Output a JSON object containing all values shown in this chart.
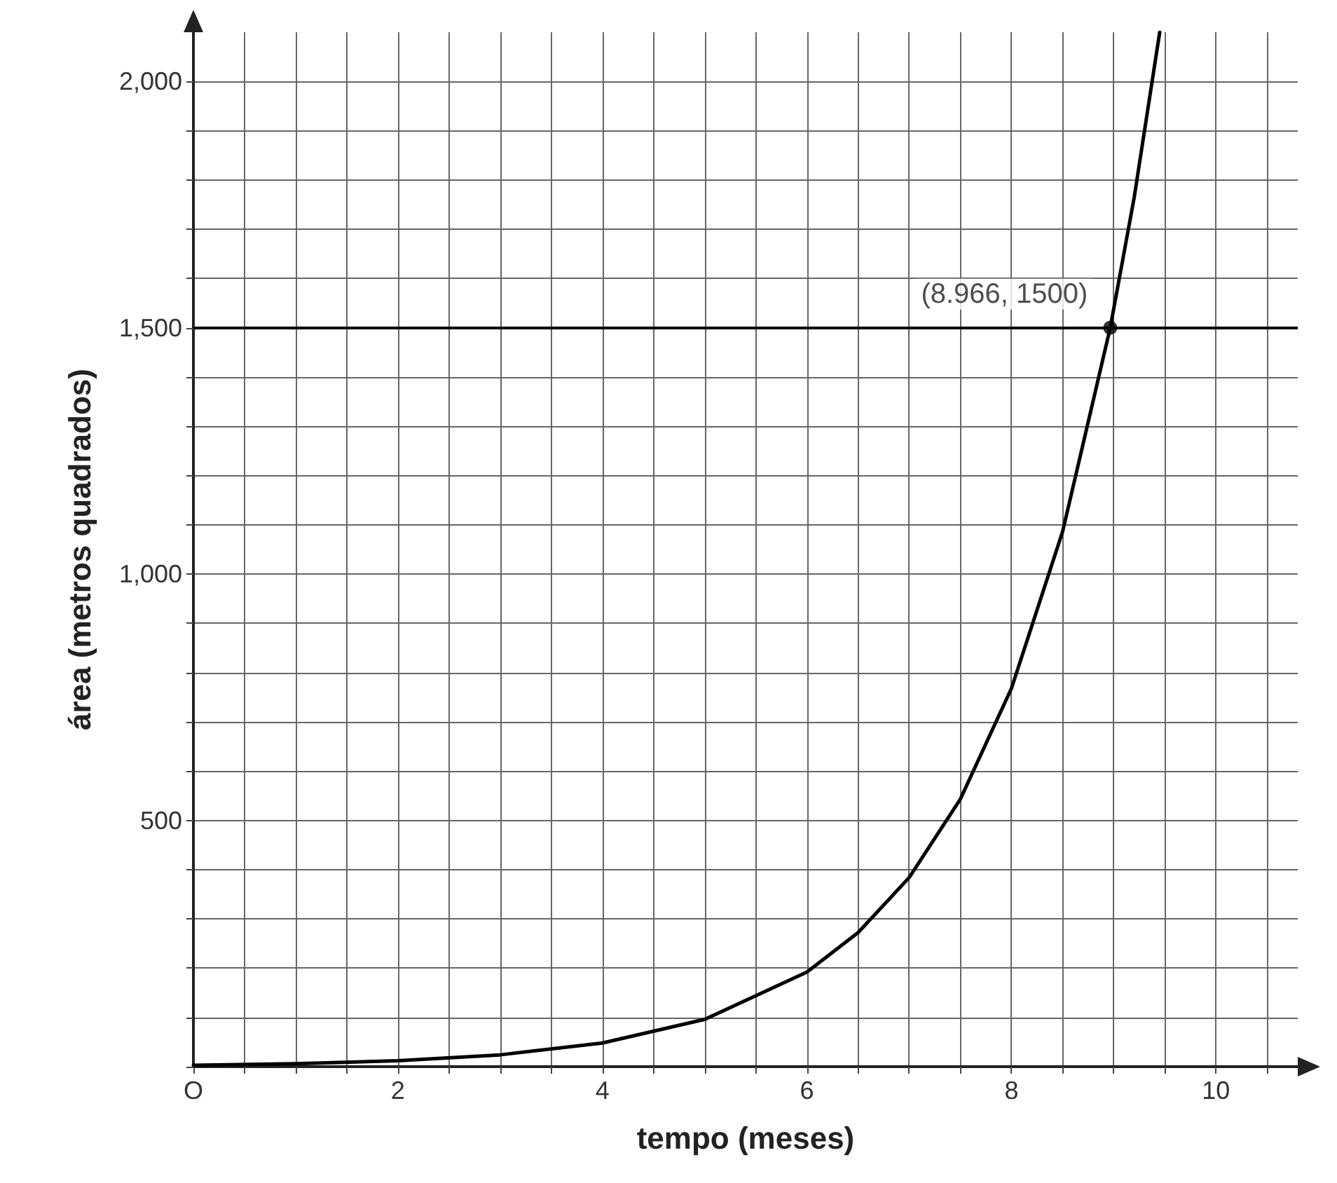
{
  "chart_data": {
    "type": "line",
    "xlabel": "tempo (meses)",
    "ylabel": "área (metros quadrados)",
    "xlim": [
      0,
      10.8
    ],
    "ylim": [
      0,
      2100
    ],
    "xticks": [
      {
        "value": 0,
        "label": "O"
      },
      {
        "value": 0.5,
        "label": null
      },
      {
        "value": 1,
        "label": null
      },
      {
        "value": 1.5,
        "label": null
      },
      2,
      {
        "value": 2.5,
        "label": null
      },
      {
        "value": 3,
        "label": null
      },
      {
        "value": 3.5,
        "label": null
      },
      4,
      {
        "value": 4.5,
        "label": null
      },
      {
        "value": 5,
        "label": null
      },
      {
        "value": 5.5,
        "label": null
      },
      6,
      {
        "value": 6.5,
        "label": null
      },
      {
        "value": 7,
        "label": null
      },
      {
        "value": 7.5,
        "label": null
      },
      8,
      {
        "value": 8.5,
        "label": null
      },
      {
        "value": 9,
        "label": null
      },
      {
        "value": 9.5,
        "label": null
      },
      10,
      {
        "value": 10.5,
        "label": null
      }
    ],
    "yticks": [
      {
        "value": 0,
        "label": null
      },
      {
        "value": 100,
        "label": null
      },
      {
        "value": 200,
        "label": null
      },
      {
        "value": 300,
        "label": null
      },
      {
        "value": 400,
        "label": null
      },
      500,
      {
        "value": 600,
        "label": null
      },
      {
        "value": 700,
        "label": null
      },
      {
        "value": 800,
        "label": null
      },
      {
        "value": 900,
        "label": null
      },
      {
        "value": 1000,
        "label": "1,000"
      },
      {
        "value": 1100,
        "label": null
      },
      {
        "value": 1200,
        "label": null
      },
      {
        "value": 1300,
        "label": null
      },
      {
        "value": 1400,
        "label": null
      },
      {
        "value": 1500,
        "label": "1,500"
      },
      {
        "value": 1600,
        "label": null
      },
      {
        "value": 1700,
        "label": null
      },
      {
        "value": 1800,
        "label": null
      },
      {
        "value": 1900,
        "label": null
      },
      {
        "value": 2000,
        "label": "2,000"
      }
    ],
    "grid": true,
    "marker": "none",
    "line_style": "solid",
    "series": [
      {
        "color": "#000000",
        "x": [
          0,
          1,
          2,
          3,
          4,
          5,
          6,
          6.5,
          7,
          7.5,
          8,
          8.5,
          8.966,
          9.2,
          9.45
        ],
        "values": [
          3,
          6,
          12,
          24,
          48,
          96,
          192,
          272,
          384,
          543,
          768,
          1086,
          1500,
          1764,
          2100
        ]
      },
      {
        "type": "scatter",
        "color": "#000000",
        "marker": "circle",
        "x": [
          8.966
        ],
        "values": [
          1500
        ]
      }
    ],
    "ref_lines": [
      {
        "axis": "y",
        "value": 1500,
        "color": "#000000"
      }
    ],
    "annotations": [
      {
        "text": "(8.966, 1500)",
        "x": 8.966,
        "y": 1500
      }
    ]
  }
}
